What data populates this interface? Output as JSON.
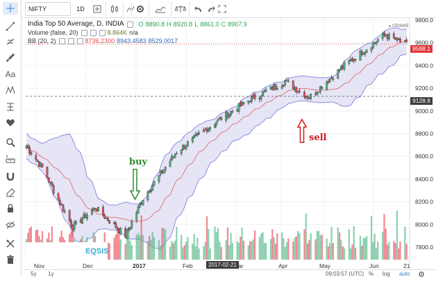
{
  "toolbar": {
    "symbol": "NIFTY",
    "interval": "1D",
    "icons": [
      "add-symbol-icon",
      "bar-style-icon",
      "indicators-icon",
      "settings-icon",
      "compare-icon",
      "alerts-icon",
      "undo-icon",
      "redo-icon",
      "fullscreen-icon"
    ]
  },
  "sidebar": {
    "tools": [
      "crosshair-icon",
      "trend-line-icon",
      "fib-tool-icon",
      "brush-icon",
      "text-tool-icon",
      "pattern-icon",
      "prediction-icon",
      "heart-icon",
      "zoom-icon",
      "measure-icon",
      "magnet-icon",
      "lock-icon",
      "hide-drawings-icon",
      "eye-icon",
      "trash-icon"
    ]
  },
  "legend": {
    "title": "India Top 50 Average, D, INDIA",
    "ohlc": {
      "o_label": "O",
      "o_value": "8890.8",
      "h_label": "H",
      "h_value": "8920.8",
      "l_label": "L",
      "l_value": "8861.0",
      "c_label": "C",
      "c_value": "8907.9"
    },
    "volume_label": "Volume (false, 20)",
    "volume_value": "8.864K",
    "volume_extra": "n/a",
    "bb_label": "BB (20, 2)",
    "bb_value_1": "8736.2300",
    "bb_value_2": "8943.4583",
    "bb_value_3": "8529.0017",
    "closed": "closed"
  },
  "price_scale": {
    "ticks": [
      "9800.0",
      "9600.0",
      "9400.0",
      "9200.0",
      "9000.0",
      "8800.0",
      "8600.0",
      "8400.0",
      "8200.0",
      "8000.0",
      "7800.0"
    ],
    "last_price": "9588.1",
    "crosshair_price": "9128.8"
  },
  "time_scale": {
    "labels": [
      "Nov",
      "Dec",
      "2017",
      "Feb",
      "Mar",
      "Apr",
      "May",
      "Jun",
      "21"
    ],
    "crosshair_date": "2017-02-21"
  },
  "annotations": {
    "buy": "buy",
    "sell": "sell",
    "watermark": "EQSIS"
  },
  "bottom_bar": {
    "range_5y": "5y",
    "range_1y": "1y",
    "clock": "09:03:57 (UTC)",
    "percent": "%",
    "log": "log",
    "auto": "auto"
  },
  "colors": {
    "up": "#53b987",
    "down": "#eb4d5c",
    "band_fill": "#dedcf3",
    "band_line": "#8c8cdb",
    "basis": "#e07a7a",
    "last_price": "#e2363b"
  },
  "chart_data": {
    "type": "candlestick",
    "title": "India Top 50 Average, D, INDIA",
    "x_range": [
      "2016-10-25",
      "2017-06-21"
    ],
    "ylim": [
      7700,
      9800
    ],
    "overlays": [
      "Bollinger Bands (20, 2)",
      "Volume"
    ],
    "anchor_closes": [
      {
        "x": "2016-10-25",
        "y": 8690
      },
      {
        "x": "2016-11-04",
        "y": 8500
      },
      {
        "x": "2016-11-11",
        "y": 8300
      },
      {
        "x": "2016-11-23",
        "y": 7980
      },
      {
        "x": "2016-12-07",
        "y": 8150
      },
      {
        "x": "2016-12-26",
        "y": 7900
      },
      {
        "x": "2017-01-06",
        "y": 8230
      },
      {
        "x": "2017-01-27",
        "y": 8640
      },
      {
        "x": "2017-02-21",
        "y": 8910
      },
      {
        "x": "2017-03-14",
        "y": 9100
      },
      {
        "x": "2017-04-05",
        "y": 9260
      },
      {
        "x": "2017-04-20",
        "y": 9120
      },
      {
        "x": "2017-05-12",
        "y": 9400
      },
      {
        "x": "2017-06-06",
        "y": 9670
      },
      {
        "x": "2017-06-20",
        "y": 9588
      }
    ]
  }
}
